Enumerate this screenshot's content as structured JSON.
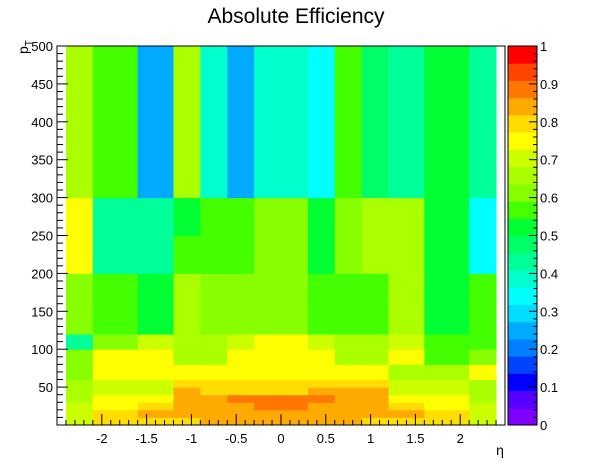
{
  "chart_data": {
    "type": "heatmap",
    "title": "Absolute Efficiency",
    "xlabel": "η",
    "ylabel": "p",
    "ylabel_subscript": "T",
    "xlim": [
      -2.5,
      2.5
    ],
    "ylim": [
      0,
      500
    ],
    "x_edges": [
      -2.4,
      -2.1,
      -1.6,
      -1.2,
      -0.9,
      -0.6,
      -0.3,
      0.3,
      0.6,
      0.9,
      1.2,
      1.6,
      2.1,
      2.4
    ],
    "y_edges": [
      0,
      10,
      20,
      30,
      40,
      50,
      60,
      70,
      80,
      90,
      100,
      120,
      140,
      160,
      180,
      200,
      250,
      300,
      500
    ],
    "x_ticks": [
      -2,
      -1.5,
      -1,
      -0.5,
      0,
      0.5,
      1,
      1.5,
      2
    ],
    "x_tick_labels": [
      "-2",
      "-1.5",
      "-1",
      "-0.5",
      "0",
      "0.5",
      "1",
      "1.5",
      "2"
    ],
    "y_ticks": [
      50,
      100,
      150,
      200,
      250,
      300,
      350,
      400,
      450,
      500
    ],
    "y_tick_labels": [
      "50",
      "100",
      "150",
      "200",
      "250",
      "300",
      "350",
      "400",
      "450",
      "500"
    ],
    "values": [
      [
        0.72,
        0.78,
        0.8,
        0.8,
        0.83,
        0.86,
        0.86,
        0.86,
        0.83,
        0.8,
        0.8,
        0.78,
        0.72
      ],
      [
        0.72,
        0.8,
        0.83,
        0.86,
        0.86,
        0.86,
        0.86,
        0.86,
        0.86,
        0.86,
        0.83,
        0.8,
        0.72
      ],
      [
        0.72,
        0.77,
        0.78,
        0.83,
        0.83,
        0.85,
        0.88,
        0.85,
        0.83,
        0.83,
        0.78,
        0.77,
        0.72
      ],
      [
        0.67,
        0.77,
        0.77,
        0.83,
        0.83,
        0.88,
        0.88,
        0.88,
        0.83,
        0.83,
        0.77,
        0.77,
        0.67
      ],
      [
        0.67,
        0.72,
        0.72,
        0.83,
        0.78,
        0.78,
        0.78,
        0.83,
        0.83,
        0.83,
        0.72,
        0.72,
        0.67
      ],
      [
        0.67,
        0.72,
        0.72,
        0.8,
        0.78,
        0.78,
        0.78,
        0.8,
        0.8,
        0.8,
        0.72,
        0.72,
        0.67
      ],
      [
        0.62,
        0.75,
        0.75,
        0.75,
        0.77,
        0.77,
        0.77,
        0.76,
        0.76,
        0.76,
        0.68,
        0.68,
        0.75
      ],
      [
        0.62,
        0.75,
        0.75,
        0.75,
        0.77,
        0.77,
        0.77,
        0.76,
        0.76,
        0.76,
        0.68,
        0.68,
        0.75
      ],
      [
        0.62,
        0.75,
        0.75,
        0.65,
        0.65,
        0.73,
        0.76,
        0.73,
        0.65,
        0.68,
        0.75,
        0.58,
        0.62
      ],
      [
        0.62,
        0.75,
        0.75,
        0.65,
        0.65,
        0.73,
        0.76,
        0.73,
        0.65,
        0.68,
        0.75,
        0.58,
        0.62
      ],
      [
        0.45,
        0.62,
        0.72,
        0.65,
        0.65,
        0.72,
        0.75,
        0.7,
        0.65,
        0.65,
        0.72,
        0.55,
        0.58
      ],
      [
        0.62,
        0.55,
        0.52,
        0.64,
        0.62,
        0.62,
        0.62,
        0.55,
        0.55,
        0.55,
        0.65,
        0.52,
        0.55
      ],
      [
        0.62,
        0.55,
        0.52,
        0.64,
        0.62,
        0.62,
        0.62,
        0.55,
        0.55,
        0.55,
        0.65,
        0.52,
        0.55
      ],
      [
        0.62,
        0.55,
        0.52,
        0.64,
        0.62,
        0.62,
        0.62,
        0.55,
        0.55,
        0.55,
        0.65,
        0.52,
        0.55
      ],
      [
        0.62,
        0.55,
        0.52,
        0.64,
        0.62,
        0.62,
        0.62,
        0.55,
        0.55,
        0.55,
        0.65,
        0.52,
        0.55
      ],
      [
        0.73,
        0.45,
        0.45,
        0.55,
        0.55,
        0.55,
        0.6,
        0.52,
        0.6,
        0.65,
        0.65,
        0.52,
        0.35
      ],
      [
        0.73,
        0.45,
        0.45,
        0.52,
        0.55,
        0.55,
        0.6,
        0.52,
        0.6,
        0.65,
        0.65,
        0.52,
        0.35
      ],
      [
        0.67,
        0.55,
        0.25,
        0.65,
        0.4,
        0.25,
        0.38,
        0.32,
        0.55,
        0.48,
        0.43,
        0.52,
        0.45
      ]
    ],
    "zlim": [
      0,
      1
    ],
    "colorbar_ticks": [
      0,
      0.1,
      0.2,
      0.3,
      0.4,
      0.5,
      0.6,
      0.7,
      0.8,
      0.9,
      1
    ],
    "colorbar_tick_labels": [
      "0",
      "0.1",
      "0.2",
      "0.3",
      "0.4",
      "0.5",
      "0.6",
      "0.7",
      "0.8",
      "0.9",
      "1"
    ],
    "palette": [
      "#8000ff",
      "#5500ff",
      "#0000ff",
      "#0044ff",
      "#0080ff",
      "#00aaff",
      "#00ddff",
      "#00ffff",
      "#00ffcc",
      "#00ff99",
      "#00ff66",
      "#00ff33",
      "#44ff00",
      "#88ff00",
      "#aaff00",
      "#ccff00",
      "#ffff00",
      "#ffdd00",
      "#ffaa00",
      "#ff7700",
      "#ff4400",
      "#ff0000"
    ],
    "grid": false
  }
}
